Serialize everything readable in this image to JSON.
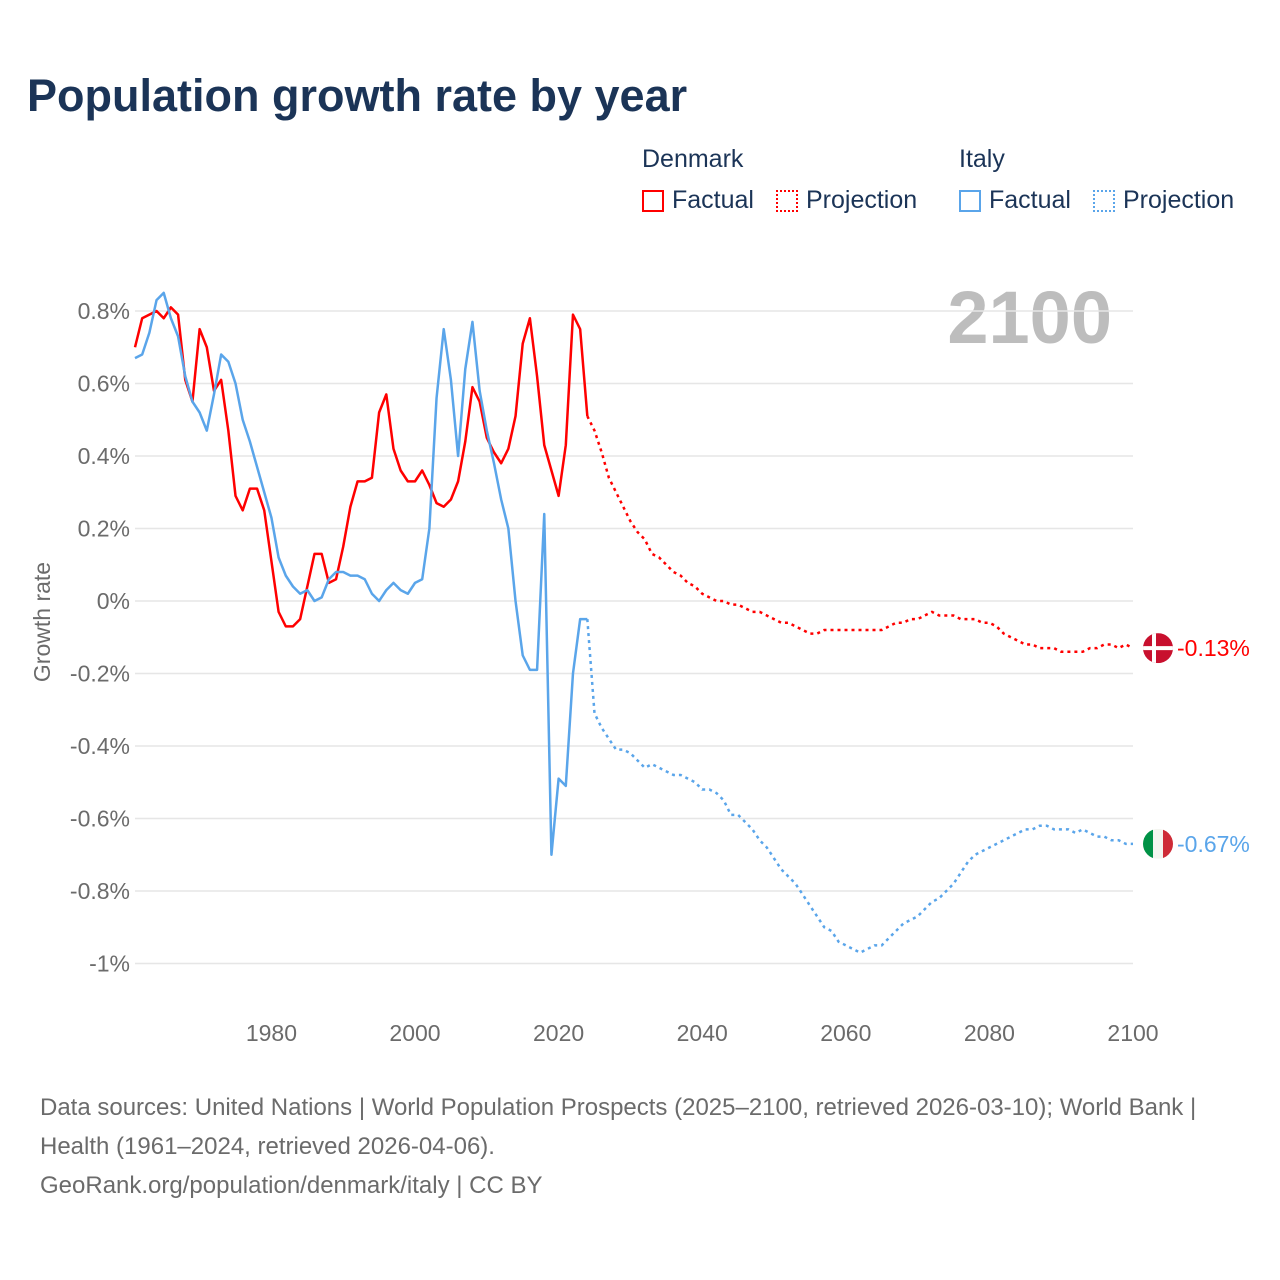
{
  "title": "Population growth rate by year",
  "legend": {
    "groups": [
      {
        "name": "Denmark",
        "color": "#ff0000",
        "items": [
          "Factual",
          "Projection"
        ]
      },
      {
        "name": "Italy",
        "color": "#5aa5ea",
        "items": [
          "Factual",
          "Projection"
        ]
      }
    ]
  },
  "year_label": "2100",
  "footer": {
    "sources": "Data sources: United Nations | World Population Prospects (2025–2100, retrieved 2026-03-10); World Bank | Health (1961–2024, retrieved 2026-04-06).",
    "credit": "GeoRank.org/population/denmark/italy | CC BY"
  },
  "chart_data": {
    "type": "line",
    "title": "Population growth rate by year",
    "xlabel": "",
    "ylabel": "Growth rate",
    "xlim": [
      1961,
      2100
    ],
    "ylim": [
      -1,
      0.8
    ],
    "x_ticks": [
      1980,
      2000,
      2020,
      2040,
      2060,
      2080,
      2100
    ],
    "y_ticks": [
      0.8,
      0.6,
      0.4,
      0.2,
      0,
      -0.2,
      -0.4,
      -0.6,
      -0.8,
      -1
    ],
    "y_tick_labels": [
      "0.8%",
      "0.6%",
      "0.4%",
      "0.2%",
      "0%",
      "-0.2%",
      "-0.4%",
      "-0.6%",
      "-0.8%",
      "-1%"
    ],
    "x_tick_labels": [
      "1980",
      "2000",
      "2020",
      "2040",
      "2060",
      "2080",
      "2100"
    ],
    "grid": true,
    "legend_position": "top-right",
    "factual_start": 1961,
    "projection_start": 2025,
    "series": [
      {
        "name": "Denmark",
        "color": "#ff0000",
        "end_label": "-0.13%",
        "factual": [
          0.7,
          0.78,
          0.79,
          0.8,
          0.78,
          0.81,
          0.79,
          0.61,
          0.55,
          0.75,
          0.7,
          0.58,
          0.61,
          0.47,
          0.29,
          0.25,
          0.31,
          0.31,
          0.25,
          0.11,
          -0.03,
          -0.07,
          -0.07,
          -0.05,
          0.04,
          0.13,
          0.13,
          0.05,
          0.06,
          0.15,
          0.26,
          0.33,
          0.33,
          0.34,
          0.52,
          0.57,
          0.42,
          0.36,
          0.33,
          0.33,
          0.36,
          0.32,
          0.27,
          0.26,
          0.28,
          0.33,
          0.44,
          0.59,
          0.55,
          0.45,
          0.41,
          0.38,
          0.42,
          0.51,
          0.71,
          0.78,
          0.62,
          0.43,
          0.36,
          0.29,
          0.43,
          0.79,
          0.75,
          0.51
        ],
        "projection": [
          0.47,
          0.41,
          0.34,
          0.3,
          0.26,
          0.22,
          0.19,
          0.17,
          0.13,
          0.12,
          0.1,
          0.08,
          0.07,
          0.05,
          0.04,
          0.02,
          0.01,
          0.0,
          0.0,
          -0.01,
          -0.01,
          -0.02,
          -0.03,
          -0.03,
          -0.04,
          -0.05,
          -0.06,
          -0.06,
          -0.07,
          -0.08,
          -0.09,
          -0.09,
          -0.08,
          -0.08,
          -0.08,
          -0.08,
          -0.08,
          -0.08,
          -0.08,
          -0.08,
          -0.08,
          -0.07,
          -0.06,
          -0.06,
          -0.05,
          -0.05,
          -0.04,
          -0.03,
          -0.04,
          -0.04,
          -0.04,
          -0.05,
          -0.05,
          -0.05,
          -0.06,
          -0.06,
          -0.07,
          -0.09,
          -0.1,
          -0.11,
          -0.12,
          -0.12,
          -0.13,
          -0.13,
          -0.13,
          -0.14,
          -0.14,
          -0.14,
          -0.14,
          -0.13,
          -0.13,
          -0.12,
          -0.12,
          -0.13,
          -0.12,
          -0.13
        ]
      },
      {
        "name": "Italy",
        "color": "#5aa5ea",
        "end_label": "-0.67%",
        "factual": [
          0.67,
          0.68,
          0.74,
          0.83,
          0.85,
          0.78,
          0.73,
          0.62,
          0.55,
          0.52,
          0.47,
          0.57,
          0.68,
          0.66,
          0.6,
          0.5,
          0.44,
          0.37,
          0.3,
          0.23,
          0.12,
          0.07,
          0.04,
          0.02,
          0.03,
          0.0,
          0.01,
          0.06,
          0.08,
          0.08,
          0.07,
          0.07,
          0.06,
          0.02,
          0.0,
          0.03,
          0.05,
          0.03,
          0.02,
          0.05,
          0.06,
          0.2,
          0.56,
          0.75,
          0.61,
          0.4,
          0.64,
          0.77,
          0.58,
          0.47,
          0.38,
          0.28,
          0.2,
          0.0,
          -0.15,
          -0.19,
          -0.19,
          0.24,
          -0.7,
          -0.49,
          -0.51,
          -0.2,
          -0.05,
          -0.05
        ],
        "projection": [
          -0.31,
          -0.35,
          -0.38,
          -0.41,
          -0.41,
          -0.42,
          -0.44,
          -0.46,
          -0.45,
          -0.46,
          -0.47,
          -0.48,
          -0.48,
          -0.49,
          -0.5,
          -0.52,
          -0.52,
          -0.53,
          -0.55,
          -0.59,
          -0.59,
          -0.61,
          -0.63,
          -0.66,
          -0.68,
          -0.71,
          -0.74,
          -0.76,
          -0.78,
          -0.81,
          -0.84,
          -0.87,
          -0.9,
          -0.91,
          -0.94,
          -0.95,
          -0.96,
          -0.97,
          -0.96,
          -0.95,
          -0.95,
          -0.93,
          -0.91,
          -0.89,
          -0.88,
          -0.87,
          -0.85,
          -0.83,
          -0.82,
          -0.8,
          -0.78,
          -0.75,
          -0.72,
          -0.7,
          -0.69,
          -0.68,
          -0.67,
          -0.66,
          -0.65,
          -0.64,
          -0.63,
          -0.63,
          -0.62,
          -0.62,
          -0.63,
          -0.63,
          -0.63,
          -0.64,
          -0.63,
          -0.64,
          -0.65,
          -0.65,
          -0.66,
          -0.66,
          -0.67,
          -0.67
        ]
      }
    ]
  }
}
